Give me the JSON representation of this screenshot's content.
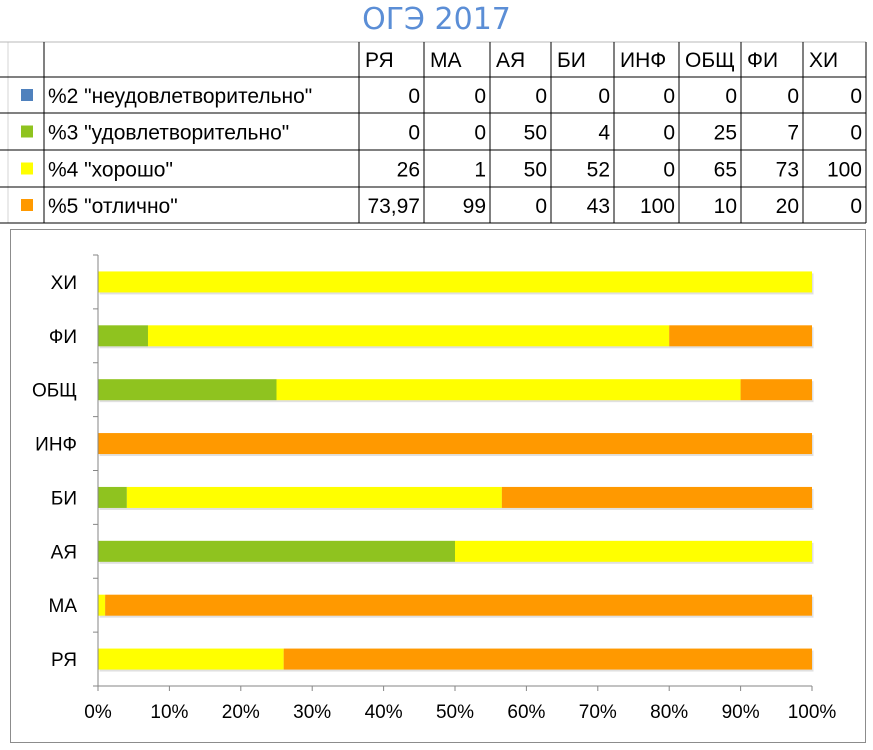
{
  "title": "ОГЭ 2017",
  "table": {
    "columns": [
      "РЯ",
      "МА",
      "АЯ",
      "БИ",
      "ИНФ",
      "ОБЩ",
      "ФИ",
      "ХИ"
    ],
    "rows": [
      {
        "label": "%2 \"неудовлетворительно\"",
        "color": "#4f81bd",
        "values": [
          "0",
          "0",
          "0",
          "0",
          "0",
          "0",
          "0",
          "0"
        ]
      },
      {
        "label": "%3 \"удовлетворительно\"",
        "color": "#8fc31f",
        "values": [
          "0",
          "0",
          "50",
          "4",
          "0",
          "25",
          "7",
          "0"
        ]
      },
      {
        "label": "%4 \"хорошо\"",
        "color": "#ffff00",
        "values": [
          "26",
          "1",
          "50",
          "52",
          "0",
          "65",
          "73",
          "100"
        ]
      },
      {
        "label": "%5 \"отлично\"",
        "color": "#ff9900",
        "values": [
          "73,97",
          "99",
          "0",
          "43",
          "100",
          "10",
          "20",
          "0"
        ]
      }
    ]
  },
  "chart_data": {
    "type": "bar",
    "orientation": "horizontal",
    "stacked": "percent",
    "categories": [
      "ХИ",
      "ФИ",
      "ОБЩ",
      "ИНФ",
      "БИ",
      "АЯ",
      "МА",
      "РЯ"
    ],
    "series": [
      {
        "name": "%2 \"неудовлетворительно\"",
        "color": "#4f81bd",
        "values": [
          0,
          0,
          0,
          0,
          0,
          0,
          0,
          0
        ]
      },
      {
        "name": "%3 \"удовлетворительно\"",
        "color": "#8fc31f",
        "values": [
          0,
          7,
          25,
          0,
          4,
          50,
          0,
          0
        ]
      },
      {
        "name": "%4 \"хорошо\"",
        "color": "#ffff00",
        "values": [
          100,
          73,
          65,
          0,
          52,
          50,
          1,
          26
        ]
      },
      {
        "name": "%5 \"отлично\"",
        "color": "#ff9900",
        "values": [
          0,
          20,
          10,
          100,
          43,
          0,
          99,
          73.97
        ]
      }
    ],
    "xticks": [
      "0%",
      "10%",
      "20%",
      "30%",
      "40%",
      "50%",
      "60%",
      "70%",
      "80%",
      "90%",
      "100%"
    ],
    "xlim": [
      0,
      100
    ],
    "grid": false,
    "legend": "in table"
  }
}
